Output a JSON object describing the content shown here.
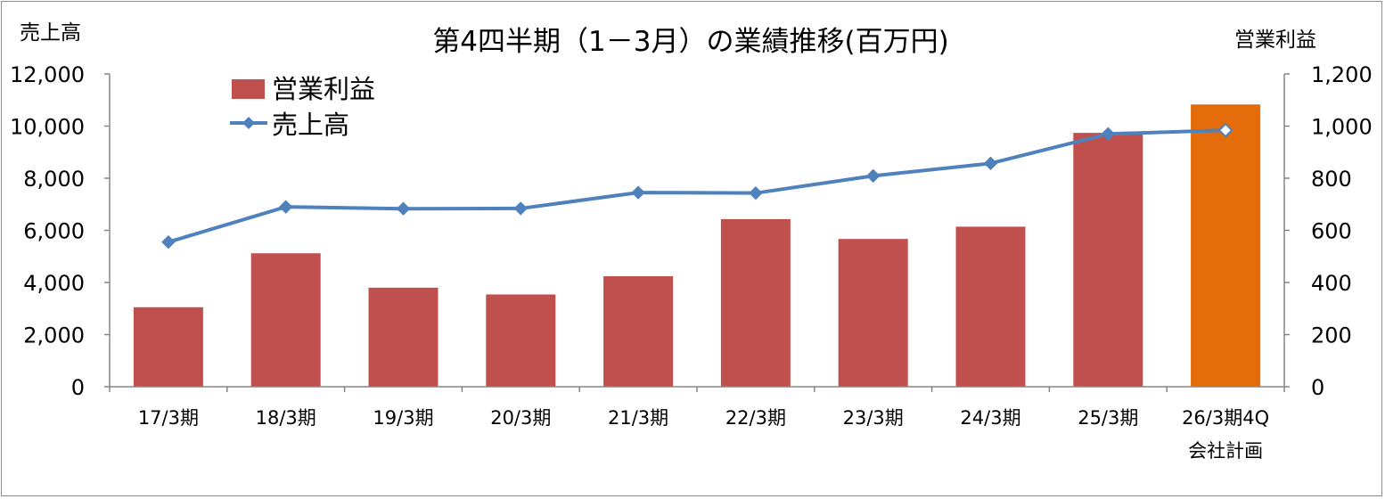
{
  "chart_data": {
    "type": "bar+line",
    "title": "第4四半期（1－3月）の業績推移(百万円)",
    "left_axis_label": "売上高",
    "right_axis_label": "営業利益",
    "categories": [
      [
        "17/3期"
      ],
      [
        "18/3期"
      ],
      [
        "19/3期"
      ],
      [
        "20/3期"
      ],
      [
        "21/3期"
      ],
      [
        "22/3期"
      ],
      [
        "23/3期"
      ],
      [
        "24/3期"
      ],
      [
        "25/3期"
      ],
      [
        "26/3期4Q",
        "会社計画"
      ]
    ],
    "y_left": {
      "min": 0,
      "max": 12000,
      "ticks": [
        "0",
        "2,000",
        "4,000",
        "6,000",
        "8,000",
        "10,000",
        "12,000"
      ]
    },
    "y_right": {
      "min": 0,
      "max": 1200,
      "ticks": [
        "0",
        "200",
        "400",
        "600",
        "800",
        "1,000",
        "1,200"
      ]
    },
    "series": [
      {
        "name": "営業利益",
        "kind": "bar",
        "axis": "right",
        "color": "#c0504d",
        "highlight_color": "#e46c0a",
        "highlight_index": 9,
        "values": [
          305,
          512,
          380,
          354,
          424,
          643,
          567,
          614,
          974,
          1083
        ]
      },
      {
        "name": "売上高",
        "kind": "line",
        "axis": "left",
        "color": "#4f81bd",
        "values": [
          5550,
          6900,
          6830,
          6840,
          7450,
          7430,
          8090,
          8570,
          9700,
          9840
        ]
      }
    ],
    "legend": {
      "position": "top-left"
    },
    "grid": false
  }
}
